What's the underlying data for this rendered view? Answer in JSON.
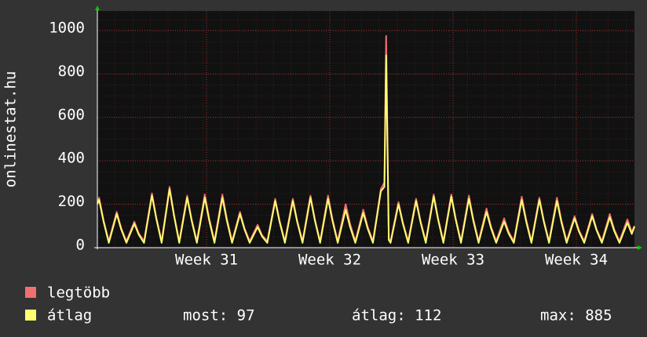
{
  "chart_data": {
    "type": "line",
    "ylabel": "onlinestat.hu",
    "xlim": [
      0,
      30.5
    ],
    "ylim": [
      0,
      1090
    ],
    "yticks": [
      0,
      200,
      400,
      600,
      800,
      1000
    ],
    "xticks": [
      {
        "value": 6.2,
        "label": "Week 31"
      },
      {
        "value": 13.2,
        "label": "Week 32"
      },
      {
        "value": 20.2,
        "label": "Week 33"
      },
      {
        "value": 27.2,
        "label": "Week 34"
      }
    ],
    "grid": true,
    "x": [
      0,
      0.1,
      0.35,
      0.65,
      1.1,
      1.35,
      1.65,
      2.1,
      2.35,
      2.65,
      3.1,
      3.35,
      3.65,
      4.1,
      4.35,
      4.65,
      5.1,
      5.35,
      5.65,
      6.1,
      6.35,
      6.65,
      7.1,
      7.35,
      7.65,
      8.1,
      8.35,
      8.65,
      9.1,
      9.35,
      9.65,
      10.1,
      10.35,
      10.65,
      11.1,
      11.35,
      11.65,
      12.1,
      12.35,
      12.65,
      13.1,
      13.35,
      13.65,
      14.1,
      14.35,
      14.65,
      15.1,
      15.35,
      15.65,
      16.1,
      16.3,
      16.4,
      16.55,
      16.65,
      17.1,
      17.35,
      17.65,
      18.1,
      18.35,
      18.65,
      19.1,
      19.35,
      19.65,
      20.1,
      20.35,
      20.65,
      21.1,
      21.35,
      21.65,
      22.1,
      22.35,
      22.65,
      23.1,
      23.35,
      23.65,
      24.1,
      24.35,
      24.65,
      25.1,
      25.35,
      25.65,
      26.1,
      26.35,
      26.65,
      27.1,
      27.35,
      27.65,
      28.1,
      28.35,
      28.65,
      29.1,
      29.35,
      29.65,
      30.1,
      30.35,
      30.5
    ],
    "series": [
      {
        "name": "legtöbb",
        "color": "#f07070",
        "values": [
          210,
          230,
          127,
          30,
          165,
          91,
          30,
          120,
          66,
          30,
          250,
          138,
          30,
          280,
          154,
          30,
          240,
          132,
          30,
          245,
          135,
          30,
          245,
          135,
          30,
          165,
          91,
          30,
          105,
          58,
          30,
          225,
          124,
          30,
          225,
          124,
          30,
          240,
          132,
          30,
          240,
          132,
          30,
          200,
          110,
          30,
          175,
          96,
          30,
          270,
          300,
          975,
          40,
          30,
          210,
          116,
          30,
          225,
          124,
          30,
          245,
          135,
          30,
          245,
          135,
          30,
          240,
          132,
          30,
          180,
          99,
          30,
          135,
          74,
          30,
          235,
          129,
          30,
          230,
          127,
          30,
          230,
          127,
          30,
          145,
          80,
          30,
          155,
          85,
          30,
          155,
          85,
          30,
          130,
          72,
          100
        ]
      },
      {
        "name": "átlag",
        "color": "#ffff70",
        "values": [
          200,
          220,
          121,
          22,
          155,
          85,
          22,
          110,
          60,
          22,
          240,
          132,
          22,
          270,
          148,
          22,
          230,
          126,
          22,
          230,
          126,
          22,
          230,
          126,
          22,
          155,
          85,
          22,
          95,
          52,
          22,
          215,
          118,
          22,
          215,
          118,
          22,
          230,
          126,
          22,
          225,
          124,
          22,
          175,
          96,
          22,
          160,
          88,
          22,
          260,
          280,
          885,
          35,
          22,
          200,
          110,
          22,
          215,
          118,
          22,
          235,
          129,
          22,
          235,
          129,
          22,
          225,
          124,
          22,
          165,
          91,
          22,
          120,
          66,
          22,
          220,
          121,
          22,
          220,
          121,
          22,
          215,
          118,
          22,
          135,
          74,
          22,
          145,
          80,
          22,
          140,
          77,
          22,
          115,
          63,
          97
        ]
      }
    ],
    "stats": [
      "most: 97",
      "átlag: 112",
      "max: 885"
    ]
  }
}
